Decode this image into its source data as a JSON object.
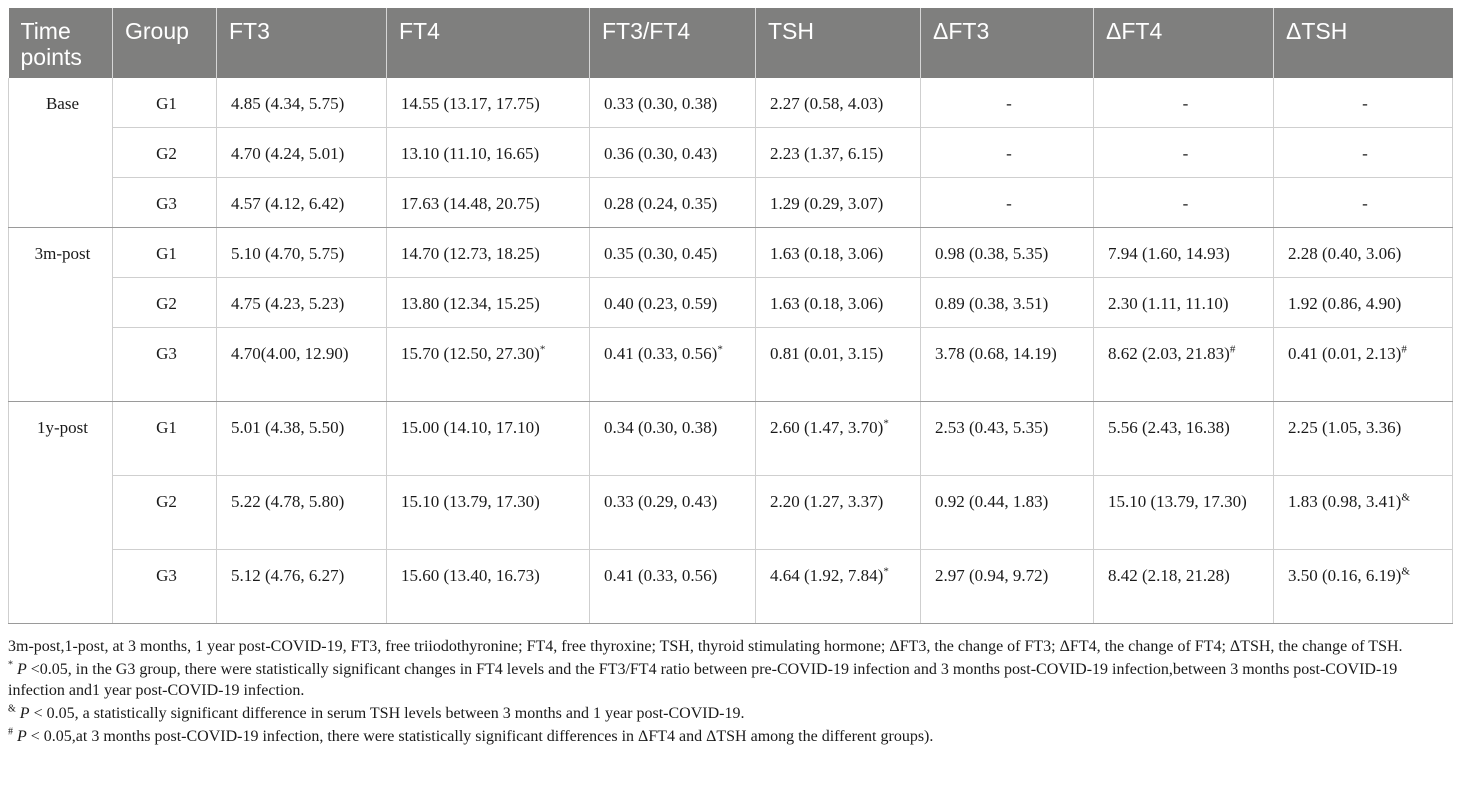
{
  "table": {
    "headers": [
      "Time points",
      "Group",
      "FT3",
      "FT4",
      "FT3/FT4",
      "TSH",
      "ΔFT3",
      "ΔFT4",
      "ΔTSH"
    ],
    "sections": [
      {
        "time_point": "Base",
        "rows": [
          {
            "group": "G1",
            "ft3": "4.85 (4.34, 5.75)",
            "ft4": "14.55 (13.17, 17.75)",
            "ratio": "0.33 (0.30, 0.38)",
            "tsh": "2.27 (0.58, 4.03)",
            "dft3": "-",
            "dft4": "-",
            "dtsh": "-"
          },
          {
            "group": "G2",
            "ft3": "4.70 (4.24, 5.01)",
            "ft4": "13.10 (11.10, 16.65)",
            "ratio": "0.36 (0.30, 0.43)",
            "tsh": "2.23 (1.37, 6.15)",
            "dft3": "-",
            "dft4": "-",
            "dtsh": "-"
          },
          {
            "group": "G3",
            "ft3": "4.57 (4.12, 6.42)",
            "ft4": "17.63 (14.48, 20.75)",
            "ratio": "0.28 (0.24, 0.35)",
            "tsh": "1.29 (0.29, 3.07)",
            "dft3": "-",
            "dft4": "-",
            "dtsh": "-"
          }
        ]
      },
      {
        "time_point": "3m-post",
        "rows": [
          {
            "group": "G1",
            "ft3": "5.10 (4.70, 5.75)",
            "ft4": "14.70 (12.73, 18.25)",
            "ratio": "0.35 (0.30, 0.45)",
            "tsh": "1.63 (0.18, 3.06)",
            "dft3": "0.98 (0.38, 5.35)",
            "dft4": "7.94 (1.60, 14.93)",
            "dtsh": "2.28 (0.40, 3.06)"
          },
          {
            "group": "G2",
            "ft3": "4.75 (4.23, 5.23)",
            "ft4": "13.80 (12.34, 15.25)",
            "ratio": "0.40 (0.23, 0.59)",
            "tsh": "1.63 (0.18, 3.06)",
            "dft3": "0.89 (0.38, 3.51)",
            "dft4": "2.30 (1.11, 11.10)",
            "dtsh": "1.92 (0.86, 4.90)"
          },
          {
            "group": "G3",
            "ft3": "4.70(4.00, 12.90)",
            "ft4": "15.70 (12.50, 27.30)*",
            "ratio": "0.41 (0.33, 0.56)*",
            "tsh": "0.81 (0.01, 3.15)",
            "dft3": "3.78 (0.68, 14.19)",
            "dft4": "8.62 (2.03, 21.83)#",
            "dtsh": "0.41 (0.01, 2.13)#"
          }
        ]
      },
      {
        "time_point": "1y-post",
        "rows": [
          {
            "group": "G1",
            "ft3": "5.01 (4.38, 5.50)",
            "ft4": "15.00 (14.10, 17.10)",
            "ratio": "0.34 (0.30, 0.38)",
            "tsh": "2.60 (1.47, 3.70)*",
            "dft3": "2.53 (0.43, 5.35)",
            "dft4": "5.56 (2.43, 16.38)",
            "dtsh": "2.25 (1.05, 3.36)"
          },
          {
            "group": "G2",
            "ft3": "5.22 (4.78, 5.80)",
            "ft4": "15.10 (13.79, 17.30)",
            "ratio": "0.33 (0.29, 0.43)",
            "tsh": "2.20 (1.27, 3.37)",
            "dft3": "0.92 (0.44, 1.83)",
            "dft4": "15.10 (13.79, 17.30)",
            "dtsh": "1.83 (0.98, 3.41)&"
          },
          {
            "group": "G3",
            "ft3": "5.12 (4.76, 6.27)",
            "ft4": "15.60 (13.40, 16.73)",
            "ratio": "0.41 (0.33, 0.56)",
            "tsh": "4.64 (1.92, 7.84)*",
            "dft3": "2.97 (0.94, 9.72)",
            "dft4": "8.42 (2.18, 21.28)",
            "dtsh": "3.50 (0.16, 6.19)&"
          }
        ]
      }
    ]
  },
  "notes": {
    "abbrev": "3m-post,1-post, at 3 months, 1 year post-COVID-19, FT3, free triiodothyronine; FT4, free thyroxine; TSH, thyroid stimulating hormone; ΔFT3, the change of FT3; ΔFT4, the change of FT4; ΔTSH, the change of TSH.",
    "star_mark": "*",
    "star_p": "P",
    "star_text": " <0.05, in the G3 group, there were statistically significant changes in FT4 levels and the FT3/FT4 ratio between pre-COVID-19 infection and 3 months post-COVID-19 infection,between 3 months post-COVID-19 infection and1 year post-COVID-19 infection.",
    "amp_mark": "&",
    "amp_p": "P",
    "amp_text": " < 0.05, a statistically significant difference in serum TSH levels between 3 months and 1 year post-COVID-19.",
    "hash_mark": "#",
    "hash_p": "P",
    "hash_text": " < 0.05,at 3 months post-COVID-19 infection, there were statistically significant differences in ΔFT4 and ΔTSH among the different groups)."
  }
}
